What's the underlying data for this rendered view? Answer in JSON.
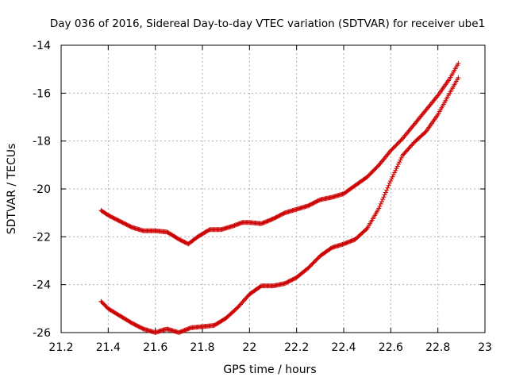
{
  "chart_data": {
    "type": "scatter",
    "title": "Day 036 of 2016, Sidereal Day-to-day VTEC variation (SDTVAR) for receiver ube1",
    "xlabel": "GPS time / hours",
    "ylabel": "SDTVAR / TECUs",
    "xlim": [
      21.2,
      23.0
    ],
    "ylim": [
      -26,
      -14
    ],
    "xticks": [
      "21.2",
      "21.4",
      "21.6",
      "21.8",
      "22",
      "22.2",
      "22.4",
      "22.6",
      "22.8",
      "23"
    ],
    "yticks": [
      "-26",
      "-24",
      "-22",
      "-20",
      "-18",
      "-16",
      "-14"
    ],
    "grid": true,
    "legend": "none",
    "marker": "+",
    "color": "#cc0000",
    "series": [
      {
        "knots": [
          [
            21.37,
            -20.9
          ],
          [
            21.4,
            -21.1
          ],
          [
            21.45,
            -21.35
          ],
          [
            21.5,
            -21.6
          ],
          [
            21.55,
            -21.75
          ],
          [
            21.6,
            -21.75
          ],
          [
            21.65,
            -21.8
          ],
          [
            21.7,
            -22.1
          ],
          [
            21.74,
            -22.3
          ],
          [
            21.78,
            -22.0
          ],
          [
            21.83,
            -21.7
          ],
          [
            21.88,
            -21.7
          ],
          [
            21.93,
            -21.55
          ],
          [
            21.97,
            -21.4
          ],
          [
            22.0,
            -21.4
          ],
          [
            22.05,
            -21.45
          ],
          [
            22.1,
            -21.25
          ],
          [
            22.15,
            -21.0
          ],
          [
            22.2,
            -20.85
          ],
          [
            22.25,
            -20.7
          ],
          [
            22.3,
            -20.45
          ],
          [
            22.35,
            -20.35
          ],
          [
            22.4,
            -20.2
          ],
          [
            22.45,
            -19.85
          ],
          [
            22.5,
            -19.5
          ],
          [
            22.55,
            -19.0
          ],
          [
            22.6,
            -18.4
          ],
          [
            22.65,
            -17.9
          ],
          [
            22.7,
            -17.3
          ],
          [
            22.75,
            -16.7
          ],
          [
            22.8,
            -16.1
          ],
          [
            22.85,
            -15.4
          ],
          [
            22.89,
            -14.7
          ]
        ]
      },
      {
        "knots": [
          [
            21.37,
            -24.7
          ],
          [
            21.4,
            -25.0
          ],
          [
            21.45,
            -25.3
          ],
          [
            21.5,
            -25.6
          ],
          [
            21.55,
            -25.85
          ],
          [
            21.6,
            -26.0
          ],
          [
            21.63,
            -25.9
          ],
          [
            21.65,
            -25.85
          ],
          [
            21.7,
            -26.0
          ],
          [
            21.75,
            -25.8
          ],
          [
            21.8,
            -25.75
          ],
          [
            21.85,
            -25.7
          ],
          [
            21.9,
            -25.4
          ],
          [
            21.95,
            -24.95
          ],
          [
            22.0,
            -24.4
          ],
          [
            22.05,
            -24.05
          ],
          [
            22.1,
            -24.05
          ],
          [
            22.15,
            -23.95
          ],
          [
            22.2,
            -23.7
          ],
          [
            22.25,
            -23.3
          ],
          [
            22.3,
            -22.8
          ],
          [
            22.35,
            -22.45
          ],
          [
            22.4,
            -22.3
          ],
          [
            22.45,
            -22.1
          ],
          [
            22.5,
            -21.65
          ],
          [
            22.55,
            -20.8
          ],
          [
            22.6,
            -19.65
          ],
          [
            22.65,
            -18.6
          ],
          [
            22.7,
            -18.05
          ],
          [
            22.75,
            -17.6
          ],
          [
            22.8,
            -16.9
          ],
          [
            22.85,
            -16.0
          ],
          [
            22.89,
            -15.3
          ]
        ]
      }
    ]
  }
}
